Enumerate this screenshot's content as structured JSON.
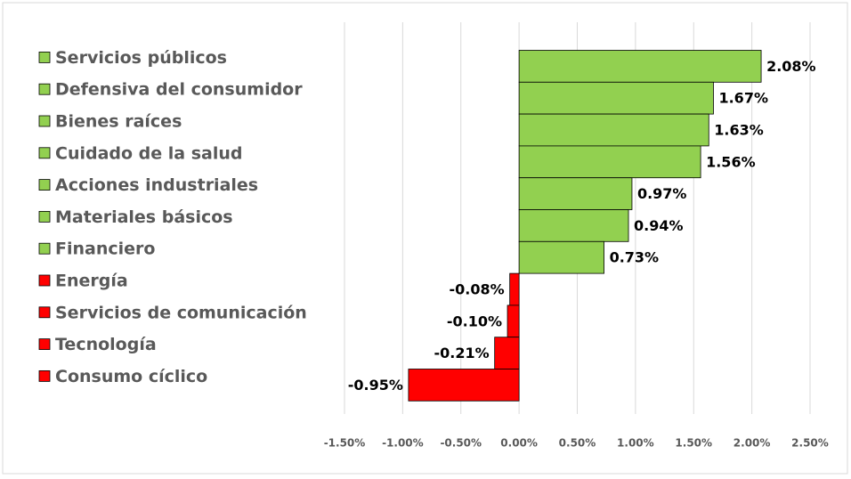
{
  "chart_data": {
    "type": "hbar",
    "categories": [
      "Servicios públicos",
      "Defensiva del consumidor",
      "Bienes raíces",
      "Cuidado de la salud",
      "Acciones industriales",
      "Materiales básicos",
      "Financiero",
      "Energía",
      "Servicios de comunicación",
      "Tecnología",
      "Consumo cíclico"
    ],
    "values": [
      2.08,
      1.67,
      1.63,
      1.56,
      0.97,
      0.94,
      0.73,
      -0.08,
      -0.1,
      -0.21,
      -0.95
    ],
    "value_labels": [
      "2.08%",
      "1.67%",
      "1.63%",
      "1.56%",
      "0.97%",
      "0.94%",
      "0.73%",
      "-0.08%",
      "-0.10%",
      "-0.21%",
      "-0.95%"
    ],
    "colors": [
      "#92d050",
      "#92d050",
      "#92d050",
      "#92d050",
      "#92d050",
      "#92d050",
      "#92d050",
      "#ff0000",
      "#ff0000",
      "#ff0000",
      "#ff0000"
    ],
    "xlim": [
      -1.5,
      2.5
    ],
    "xticks": [
      {
        "value": -1.5,
        "label": "-1.50%"
      },
      {
        "value": -1.0,
        "label": "-1.00%"
      },
      {
        "value": -0.5,
        "label": "-0.50%"
      },
      {
        "value": 0,
        "label": "0.00%"
      },
      {
        "value": 0.5,
        "label": "0.50%"
      },
      {
        "value": 1.0,
        "label": "1.00%"
      },
      {
        "value": 1.5,
        "label": "1.50%"
      },
      {
        "value": 2.0,
        "label": "2.00%"
      },
      {
        "value": 2.5,
        "label": "2.50%"
      }
    ],
    "grid": true
  }
}
